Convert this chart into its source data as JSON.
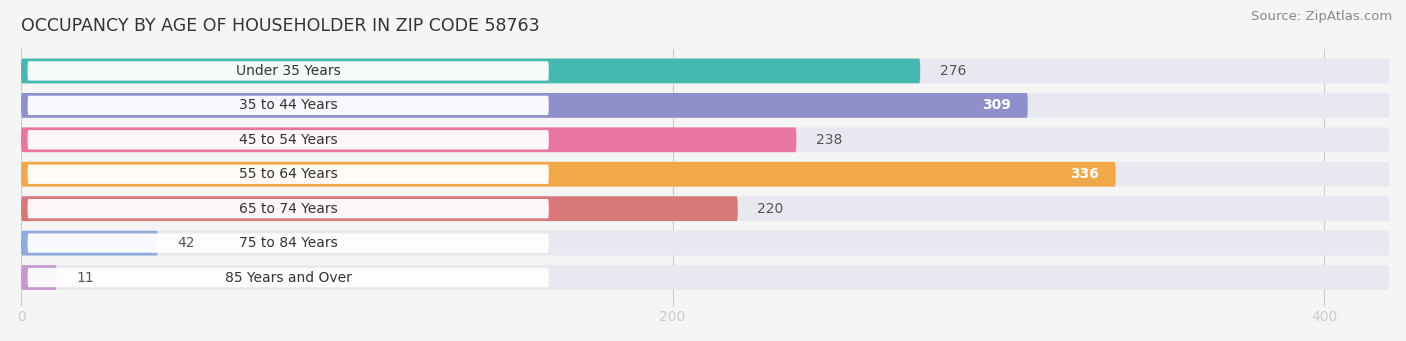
{
  "title": "OCCUPANCY BY AGE OF HOUSEHOLDER IN ZIP CODE 58763",
  "source": "Source: ZipAtlas.com",
  "categories": [
    "Under 35 Years",
    "35 to 44 Years",
    "45 to 54 Years",
    "55 to 64 Years",
    "65 to 74 Years",
    "75 to 84 Years",
    "85 Years and Over"
  ],
  "values": [
    276,
    309,
    238,
    336,
    220,
    42,
    11
  ],
  "bar_colors": [
    "#45b8b0",
    "#8f8fcc",
    "#e876a0",
    "#f0a848",
    "#d87878",
    "#90aade",
    "#c499cc"
  ],
  "xlim_data": 420,
  "xticks": [
    0,
    200,
    400
  ],
  "bar_height": 0.72,
  "row_bg_color": "#e8e8f0",
  "label_color_inside": "#ffffff",
  "label_color_outside": "#555555",
  "title_fontsize": 12.5,
  "source_fontsize": 9.5,
  "label_fontsize": 10,
  "tick_fontsize": 10,
  "category_fontsize": 10,
  "pill_color": "#ffffff",
  "inside_threshold": 280
}
